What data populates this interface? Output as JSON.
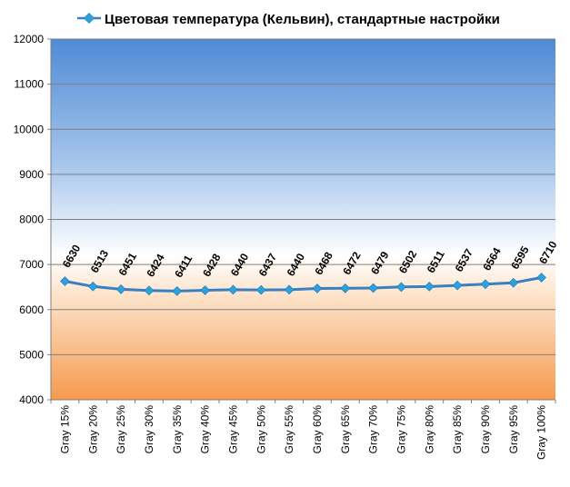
{
  "chart_data": {
    "type": "line",
    "title": "",
    "xlabel": "",
    "ylabel": "",
    "ylim": [
      4000,
      12000
    ],
    "yticks": [
      "4000",
      "5000",
      "6000",
      "7000",
      "8000",
      "9000",
      "10000",
      "11000",
      "12000"
    ],
    "ytick_values": [
      4000,
      5000,
      6000,
      7000,
      8000,
      9000,
      10000,
      11000,
      12000
    ],
    "categories": [
      "Gray 15%",
      "Gray 20%",
      "Gray 25%",
      "Gray 30%",
      "Gray 35%",
      "Gray 40%",
      "Gray 45%",
      "Gray 50%",
      "Gray 55%",
      "Gray 60%",
      "Gray 65%",
      "Gray 70%",
      "Gray 75%",
      "Gray 80%",
      "Gray 85%",
      "Gray 90%",
      "Gray 95%",
      "Gray 100%"
    ],
    "series": [
      {
        "name": "Цветовая температура (Кельвин), стандартные настройки",
        "values": [
          6630,
          6513,
          6451,
          6424,
          6411,
          6428,
          6440,
          6437,
          6440,
          6468,
          6472,
          6479,
          6502,
          6511,
          6537,
          6564,
          6595,
          6710
        ],
        "color": "#3a7fc1"
      }
    ],
    "legend_position": "top",
    "grid": true,
    "data_labels": true,
    "colors": {
      "line": "#3a7fc1",
      "marker": "#2ea0dc",
      "bg_top": "#4f8bd6",
      "bg_mid": "#ffffff",
      "bg_bottom": "#f59a4e",
      "gridline": "#7f7f7f"
    }
  }
}
